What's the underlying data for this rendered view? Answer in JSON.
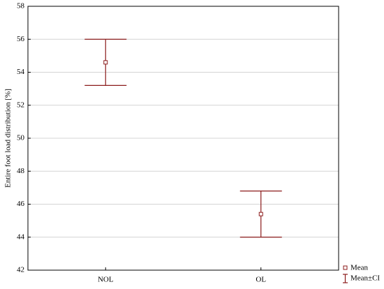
{
  "chart_data": {
    "type": "errorbar",
    "y_label": "Entire foot load distribution [%]",
    "categories": [
      "NOL",
      "OL"
    ],
    "series": [
      {
        "name": "Mean",
        "error_name": "Mean±CI",
        "color": "#8b1a1a",
        "values": [
          54.6,
          45.4
        ],
        "errors": [
          1.4,
          1.4
        ]
      }
    ],
    "ylim": [
      42,
      58
    ],
    "yticks": [
      42,
      44,
      46,
      48,
      50,
      52,
      54,
      56,
      58
    ],
    "grid": true
  }
}
